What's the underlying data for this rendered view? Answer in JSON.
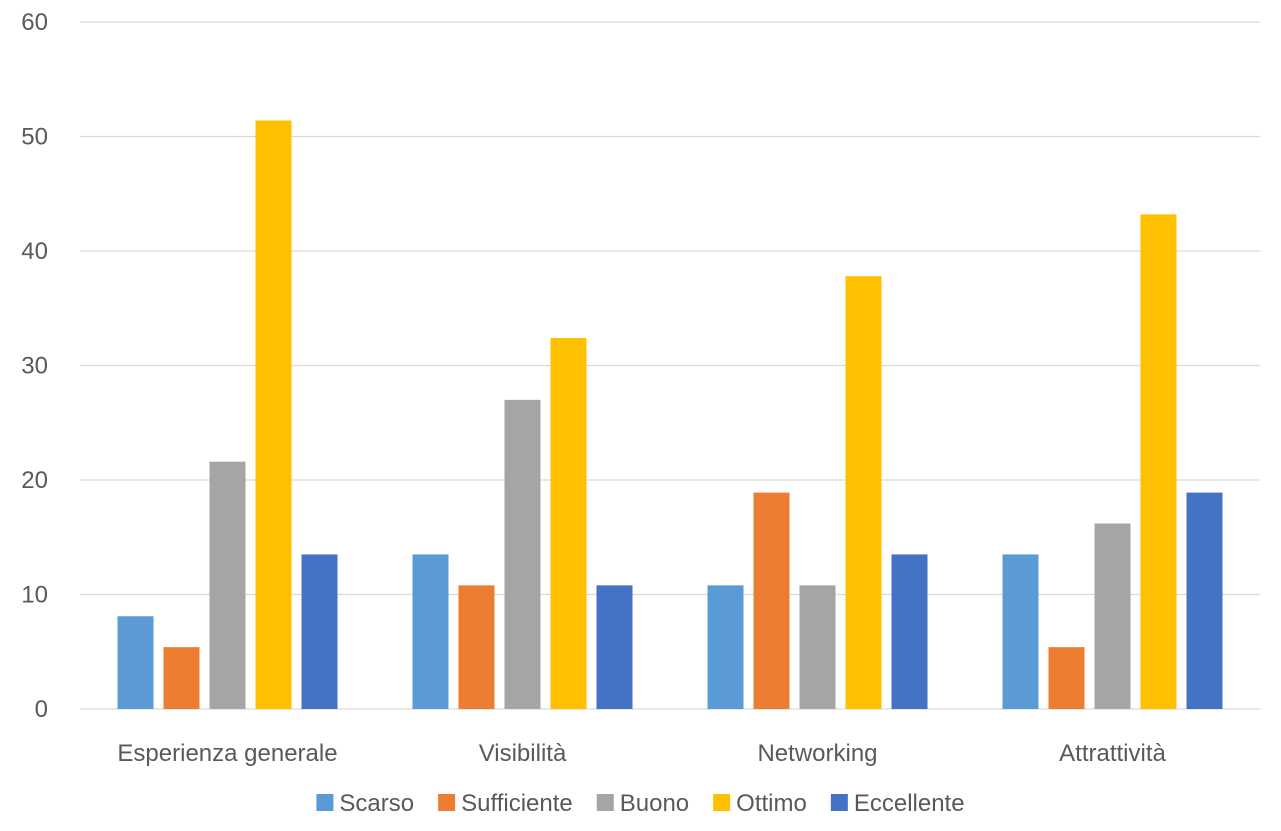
{
  "chart_data": {
    "type": "bar",
    "title": "",
    "xlabel": "",
    "ylabel": "",
    "categories": [
      "Esperienza generale",
      "Visibilità",
      "Networking",
      "Attrattività"
    ],
    "series": [
      {
        "name": "Scarso",
        "color": "#5B9BD5",
        "values": [
          8.1,
          13.5,
          10.8,
          13.5
        ]
      },
      {
        "name": "Sufficiente",
        "color": "#ED7D31",
        "values": [
          5.4,
          10.8,
          18.9,
          5.4
        ]
      },
      {
        "name": "Buono",
        "color": "#A5A5A5",
        "values": [
          21.6,
          27.0,
          10.8,
          16.2
        ]
      },
      {
        "name": "Ottimo",
        "color": "#FFC000",
        "values": [
          51.4,
          32.4,
          37.8,
          43.2
        ]
      },
      {
        "name": "Eccellente",
        "color": "#4472C4",
        "values": [
          13.5,
          10.8,
          13.5,
          18.9
        ]
      }
    ],
    "ylim": [
      0,
      60
    ],
    "yticks": [
      0,
      10,
      20,
      30,
      40,
      50,
      60
    ],
    "grid": true,
    "legend_position": "bottom"
  }
}
